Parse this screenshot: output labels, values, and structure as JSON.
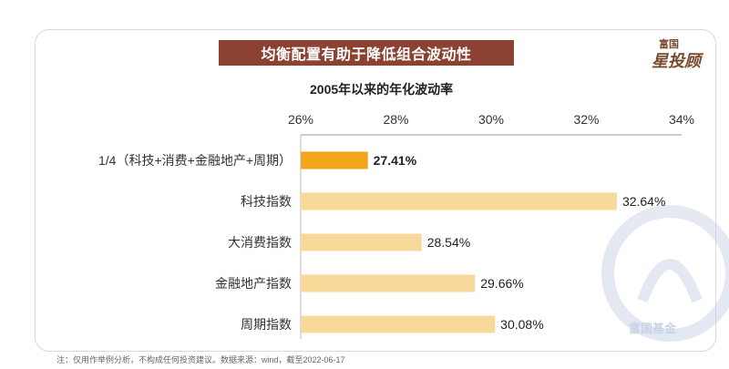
{
  "header": {
    "title": "均衡配置有助于降低组合波动性",
    "logo_top": "富国",
    "logo_main": "星投顾",
    "watermark": "富国基金"
  },
  "footnote": "注：仅用作举例分析，不构成任何投资建议。数据来源：wind，截至2022-06-17",
  "colors": {
    "title_band": "#8b4232",
    "bar_highlight": "#f4a418",
    "bar_normal": "#f9d99a",
    "watermark": "#c9d3e6"
  },
  "chart_data": {
    "type": "bar",
    "orientation": "horizontal",
    "title": "2005年以来的年化波动率",
    "categories": [
      "1/4（科技+消费+金融地产+周期）",
      "科技指数",
      "大消费指数",
      "金融地产指数",
      "周期指数"
    ],
    "values": [
      27.41,
      32.64,
      28.54,
      29.66,
      30.08
    ],
    "value_labels": [
      "27.41%",
      "32.64%",
      "28.54%",
      "29.66%",
      "30.08%"
    ],
    "highlight_index": 0,
    "xlim": [
      26,
      34
    ],
    "ticks": [
      26,
      28,
      30,
      32,
      34
    ],
    "tick_labels": [
      "26%",
      "28%",
      "30%",
      "32%",
      "34%"
    ],
    "grid": false,
    "axis_position": "top"
  }
}
